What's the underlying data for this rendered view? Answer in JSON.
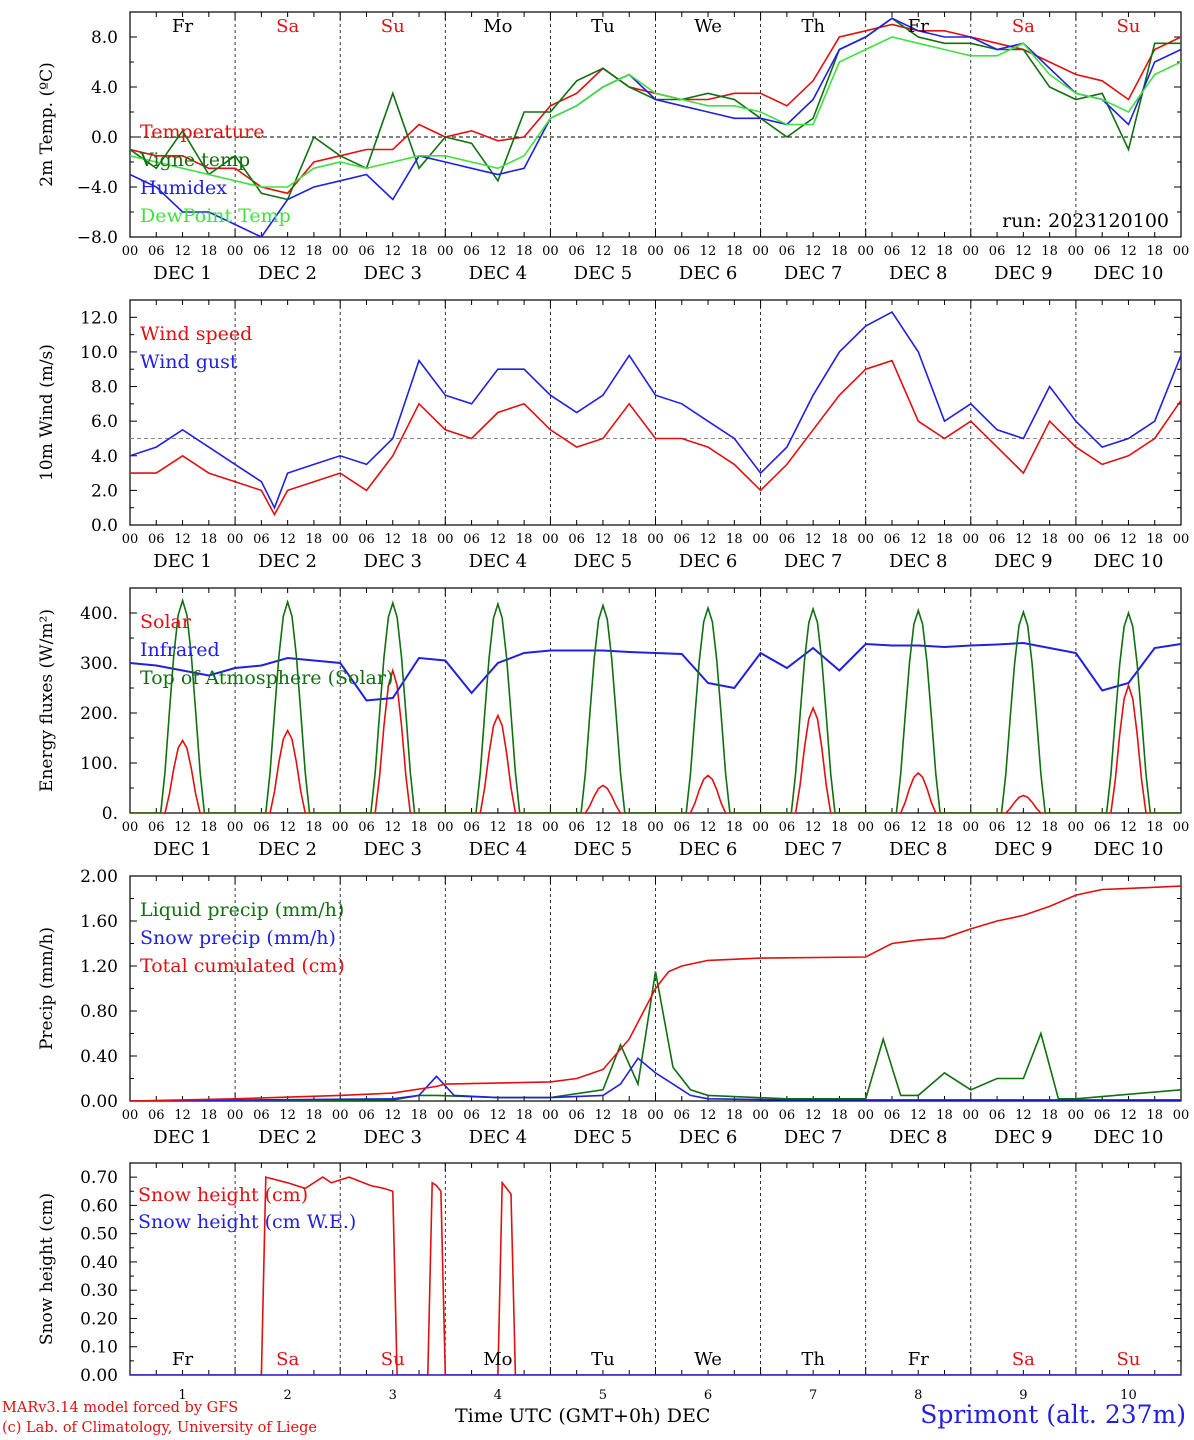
{
  "figure": {
    "run_label": "run: 2023120100",
    "xaxis_title": "Time UTC (GMT+0h)",
    "xaxis_month": "DEC",
    "station": "Sprimont (alt. 237m)",
    "credits": [
      "MARv3.14 model forced by GFS",
      "(c) Lab. of Climatology, University of Liege"
    ],
    "weekdays": [
      "Fr",
      "Sa",
      "Su",
      "Mo",
      "Tu",
      "We",
      "Th",
      "Fr",
      "Sa",
      "Su"
    ],
    "weekday_colors": [
      "#000000",
      "#e01010",
      "#e01010",
      "#000000",
      "#000000",
      "#000000",
      "#000000",
      "#000000",
      "#e01010",
      "#e01010"
    ],
    "day_numbers": [
      "1",
      "2",
      "3",
      "4",
      "5",
      "6",
      "7",
      "8",
      "9",
      "10"
    ],
    "date_labels": [
      "DEC 1",
      "DEC 2",
      "DEC 3",
      "DEC 4",
      "DEC 5",
      "DEC 6",
      "DEC 7",
      "DEC 8",
      "DEC 9",
      "DEC 10"
    ],
    "hour_ticks": [
      "00",
      "06",
      "12",
      "18"
    ],
    "hour_end": "00"
  },
  "chart_data": [
    {
      "type": "line",
      "id": "temp",
      "ylabel": "2m Temp. (ºC)",
      "ylim": [
        -8,
        10
      ],
      "yticks": [
        -8,
        -4,
        0,
        4,
        8
      ],
      "ytick_labels": [
        "−8.0",
        "−4.0",
        "0.0",
        "4.0",
        "8.0"
      ],
      "ref_line": 0,
      "legend_placement": "left",
      "x_unit": "hours since DEC 1 00 UTC",
      "series": [
        {
          "name": "Temperature",
          "color": "#e01010",
          "x": [
            0,
            6,
            12,
            18,
            24,
            30,
            36,
            42,
            48,
            54,
            60,
            66,
            72,
            78,
            84,
            90,
            96,
            102,
            108,
            114,
            120,
            126,
            132,
            138,
            144,
            150,
            156,
            162,
            168,
            174,
            180,
            186,
            192,
            198,
            204,
            210,
            216,
            222,
            228,
            234,
            240
          ],
          "y": [
            -1,
            -1.5,
            -1.5,
            -2.5,
            -2.5,
            -4,
            -4.5,
            -2,
            -1.5,
            -1,
            -1,
            1,
            0,
            0.5,
            -0.3,
            0,
            2.5,
            3.5,
            5.5,
            4,
            3.5,
            3,
            3,
            3.5,
            3.5,
            2.5,
            4.5,
            8,
            8.5,
            9,
            8.5,
            8.5,
            8,
            7.5,
            7,
            6,
            5,
            4.5,
            3,
            7,
            8
          ]
        },
        {
          "name": "Vigne temp",
          "color": "#107010",
          "x": [
            0,
            6,
            12,
            18,
            24,
            30,
            36,
            42,
            48,
            54,
            60,
            66,
            72,
            78,
            84,
            90,
            96,
            102,
            108,
            114,
            120,
            126,
            132,
            138,
            144,
            150,
            156,
            162,
            168,
            174,
            180,
            186,
            192,
            198,
            204,
            210,
            216,
            222,
            228,
            234,
            240
          ],
          "y": [
            -1,
            -2.5,
            0.5,
            -3,
            -1.5,
            -4.5,
            -5,
            0,
            -1.5,
            -2.5,
            3.5,
            -2.5,
            0,
            -0.5,
            -3.5,
            2,
            2,
            4.5,
            5.5,
            4,
            3,
            3,
            3.5,
            3,
            1.5,
            0,
            1.5,
            7,
            8,
            9.5,
            8,
            7.5,
            7.5,
            7,
            7,
            4,
            3,
            3.5,
            -1,
            7.5,
            7.5
          ]
        },
        {
          "name": "Humidex",
          "color": "#2020e0",
          "x": [
            0,
            6,
            12,
            18,
            24,
            30,
            36,
            42,
            48,
            54,
            60,
            66,
            72,
            78,
            84,
            90,
            96,
            102,
            108,
            114,
            120,
            126,
            132,
            138,
            144,
            150,
            156,
            162,
            168,
            174,
            180,
            186,
            192,
            198,
            204,
            210,
            216,
            222,
            228,
            234,
            240
          ],
          "y": [
            -3,
            -4,
            -6,
            -6,
            -7,
            -8,
            -5,
            -4,
            -3.5,
            -3,
            -5,
            -1.5,
            -2,
            -2.5,
            -3,
            -2.5,
            1.5,
            2.5,
            4,
            5,
            3,
            2.5,
            2,
            1.5,
            1.5,
            1,
            3,
            7,
            8,
            9.5,
            8.5,
            8,
            8,
            7,
            7.5,
            5.5,
            3.5,
            3,
            1,
            6,
            7
          ]
        },
        {
          "name": "DewPoint Temp",
          "color": "#40e040",
          "x": [
            0,
            6,
            12,
            18,
            24,
            30,
            36,
            42,
            48,
            54,
            60,
            66,
            72,
            78,
            84,
            90,
            96,
            102,
            108,
            114,
            120,
            126,
            132,
            138,
            144,
            150,
            156,
            162,
            168,
            174,
            180,
            186,
            192,
            198,
            204,
            210,
            216,
            222,
            228,
            234,
            240
          ],
          "y": [
            -1.5,
            -2,
            -2.5,
            -3,
            -3.5,
            -4,
            -4,
            -2.5,
            -2,
            -2.5,
            -2,
            -1.5,
            -1.5,
            -2,
            -2.5,
            -1.5,
            1.5,
            2.5,
            4,
            5,
            3.5,
            3,
            2.5,
            2.5,
            2,
            1,
            1,
            6,
            7,
            8,
            7.5,
            7,
            6.5,
            6.5,
            7.5,
            5,
            3.5,
            3,
            2,
            5,
            6
          ]
        }
      ]
    },
    {
      "type": "line",
      "id": "wind",
      "ylabel": "10m Wind (m/s)",
      "ylim": [
        0,
        13
      ],
      "yticks": [
        0,
        2,
        4,
        6,
        8,
        10,
        12
      ],
      "ytick_labels": [
        "0.0",
        "2.0",
        "4.0",
        "6.0",
        "8.0",
        "10.0",
        "12.0"
      ],
      "ref_line": 5,
      "legend_placement": "left",
      "series": [
        {
          "name": "Wind speed",
          "color": "#e01010",
          "x": [
            0,
            6,
            12,
            18,
            24,
            30,
            33,
            36,
            42,
            48,
            54,
            60,
            66,
            72,
            78,
            84,
            90,
            96,
            102,
            108,
            114,
            120,
            126,
            132,
            138,
            144,
            150,
            156,
            162,
            168,
            174,
            180,
            186,
            192,
            198,
            204,
            210,
            216,
            222,
            228,
            234,
            240
          ],
          "y": [
            3,
            3,
            4,
            3,
            2.5,
            2,
            0.6,
            2,
            2.5,
            3,
            2,
            4,
            7,
            5.5,
            5,
            6.5,
            7,
            5.5,
            4.5,
            5,
            7,
            5,
            5,
            4.5,
            3.5,
            2,
            3.5,
            5.5,
            7.5,
            9,
            9.5,
            6,
            5,
            6,
            4.5,
            3,
            6,
            4.5,
            3.5,
            4,
            5,
            7.2
          ]
        },
        {
          "name": "Wind gust",
          "color": "#2020e0",
          "x": [
            0,
            6,
            12,
            18,
            24,
            30,
            33,
            36,
            42,
            48,
            54,
            60,
            66,
            72,
            78,
            84,
            90,
            96,
            102,
            108,
            114,
            120,
            126,
            132,
            138,
            144,
            150,
            156,
            162,
            168,
            174,
            180,
            186,
            192,
            198,
            204,
            210,
            216,
            222,
            228,
            234,
            240
          ],
          "y": [
            4,
            4.5,
            5.5,
            4.5,
            3.5,
            2.5,
            1,
            3,
            3.5,
            4,
            3.5,
            5,
            9.5,
            7.5,
            7,
            9,
            9,
            7.5,
            6.5,
            7.5,
            9.8,
            7.5,
            7,
            6,
            5,
            3,
            4.5,
            7.5,
            10,
            11.5,
            12.3,
            10,
            6,
            7,
            5.5,
            5,
            8,
            6,
            4.5,
            5,
            6,
            9.8
          ]
        }
      ]
    },
    {
      "type": "line",
      "id": "flux",
      "ylabel": "Energy fluxes (W/m²)",
      "ylim": [
        0,
        450
      ],
      "yticks": [
        0,
        100,
        200,
        300,
        400
      ],
      "ytick_labels": [
        "0.",
        "100.",
        "200.",
        "300.",
        "400."
      ],
      "legend_placement": "left",
      "series": [
        {
          "name": "Solar",
          "color": "#e01010",
          "peaks": [
            145,
            165,
            285,
            195,
            55,
            75,
            210,
            80,
            35,
            255
          ]
        },
        {
          "name": "Infrared",
          "color": "#2020e0",
          "x": [
            0,
            6,
            12,
            18,
            24,
            30,
            36,
            42,
            48,
            54,
            60,
            66,
            72,
            78,
            84,
            90,
            96,
            102,
            108,
            114,
            120,
            126,
            132,
            138,
            144,
            150,
            156,
            162,
            168,
            174,
            180,
            186,
            192,
            198,
            204,
            210,
            216,
            222,
            228,
            234,
            240
          ],
          "y": [
            300,
            295,
            285,
            275,
            290,
            295,
            310,
            305,
            300,
            225,
            230,
            310,
            305,
            240,
            300,
            320,
            325,
            325,
            325,
            322,
            320,
            318,
            260,
            250,
            320,
            290,
            330,
            285,
            338,
            335,
            335,
            332,
            335,
            337,
            340,
            330,
            320,
            245,
            260,
            330,
            338
          ]
        },
        {
          "name": "Top of Atmosphere (Solar)",
          "color": "#107010",
          "peaks": [
            425,
            422,
            420,
            418,
            415,
            410,
            408,
            405,
            402,
            400
          ]
        }
      ]
    },
    {
      "type": "line",
      "id": "precip",
      "ylabel": "Precip (mm/h)",
      "ylim": [
        0,
        2
      ],
      "yticks": [
        0,
        0.4,
        0.8,
        1.2,
        1.6,
        2.0
      ],
      "ytick_labels": [
        "0.00",
        "0.40",
        "0.80",
        "1.20",
        "1.60",
        "2.00"
      ],
      "legend_placement": "left",
      "series": [
        {
          "name": "Liquid precip (mm/h)",
          "color": "#107010",
          "x": [
            0,
            60,
            66,
            70,
            84,
            96,
            108,
            112,
            116,
            120,
            124,
            128,
            132,
            150,
            168,
            172,
            176,
            180,
            186,
            192,
            198,
            204,
            208,
            212,
            216,
            240
          ],
          "y": [
            0,
            0.01,
            0.05,
            0.05,
            0.03,
            0.03,
            0.1,
            0.5,
            0.15,
            1.15,
            0.3,
            0.1,
            0.05,
            0.02,
            0.02,
            0.55,
            0.05,
            0.05,
            0.25,
            0.1,
            0.2,
            0.2,
            0.6,
            0.02,
            0.02,
            0.1
          ]
        },
        {
          "name": "Snow precip (mm/h)",
          "color": "#2020e0",
          "x": [
            0,
            60,
            66,
            70,
            74,
            84,
            96,
            108,
            112,
            116,
            120,
            124,
            128,
            132,
            150,
            168,
            192,
            240
          ],
          "y": [
            0,
            0.02,
            0.05,
            0.22,
            0.05,
            0.03,
            0.03,
            0.05,
            0.15,
            0.38,
            0.25,
            0.15,
            0.05,
            0.02,
            0.01,
            0.01,
            0.01,
            0.01
          ]
        },
        {
          "name": "Total cumulated (cm)",
          "color": "#e01010",
          "x": [
            0,
            24,
            48,
            60,
            70,
            72,
            96,
            102,
            108,
            114,
            120,
            123,
            126,
            132,
            144,
            168,
            174,
            180,
            186,
            192,
            198,
            204,
            210,
            216,
            222,
            228,
            240
          ],
          "y": [
            0,
            0.02,
            0.05,
            0.07,
            0.13,
            0.15,
            0.17,
            0.2,
            0.28,
            0.55,
            1.0,
            1.15,
            1.2,
            1.25,
            1.27,
            1.28,
            1.4,
            1.43,
            1.45,
            1.53,
            1.6,
            1.65,
            1.73,
            1.83,
            1.88,
            1.89,
            1.91
          ]
        }
      ]
    },
    {
      "type": "line",
      "id": "snow",
      "ylabel": "Snow height (cm)",
      "ylim": [
        0,
        0.75
      ],
      "yticks": [
        0,
        0.1,
        0.2,
        0.3,
        0.4,
        0.5,
        0.6,
        0.7
      ],
      "ytick_labels": [
        "0.00",
        "0.10",
        "0.20",
        "0.30",
        "0.40",
        "0.50",
        "0.60",
        "0.70"
      ],
      "legend_placement": "left",
      "series": [
        {
          "name": "Snow height (cm)",
          "color": "#e01010",
          "x": [
            0,
            30,
            31,
            36,
            40,
            44,
            46,
            50,
            55,
            58,
            60,
            61,
            68,
            69,
            70,
            71,
            72,
            72.5,
            84,
            85,
            86,
            87,
            88,
            240
          ],
          "y": [
            0,
            0,
            0.7,
            0.68,
            0.66,
            0.7,
            0.68,
            0.7,
            0.67,
            0.66,
            0.65,
            0,
            0,
            0.68,
            0.67,
            0.65,
            0,
            0,
            0,
            0.68,
            0.66,
            0.64,
            0,
            0
          ]
        },
        {
          "name": "Snow height (cm W.E.)",
          "color": "#2020e0",
          "x": [
            0,
            240
          ],
          "y": [
            0,
            0
          ]
        }
      ]
    }
  ]
}
